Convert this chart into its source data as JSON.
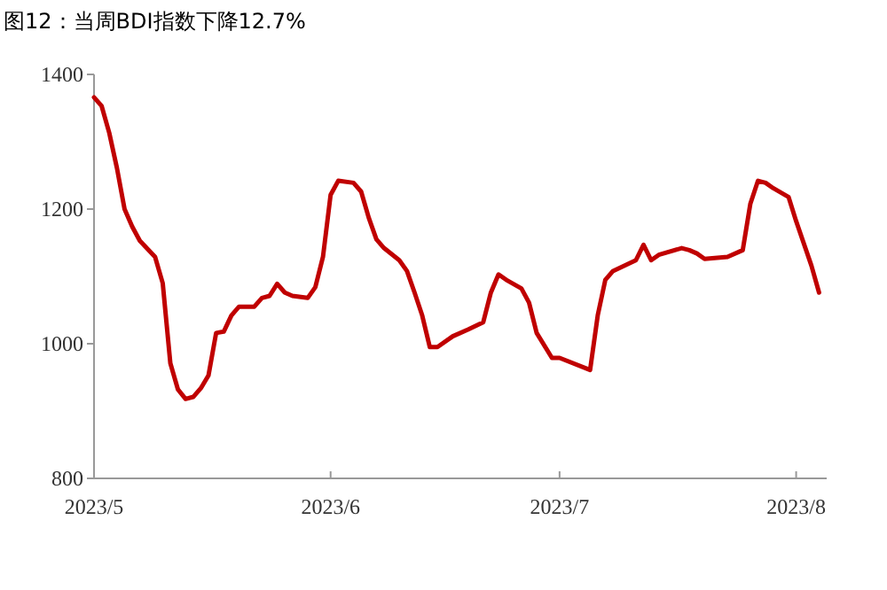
{
  "chart_data": {
    "type": "line",
    "title": "图12：当周BDI指数下降12.7%",
    "x": [
      "2023-05-01",
      "2023-05-02",
      "2023-05-03",
      "2023-05-04",
      "2023-05-05",
      "2023-05-06",
      "2023-05-07",
      "2023-05-09",
      "2023-05-10",
      "2023-05-11",
      "2023-05-12",
      "2023-05-13",
      "2023-05-14",
      "2023-05-15",
      "2023-05-16",
      "2023-05-17",
      "2023-05-18",
      "2023-05-19",
      "2023-05-20",
      "2023-05-22",
      "2023-05-23",
      "2023-05-24",
      "2023-05-25",
      "2023-05-26",
      "2023-05-27",
      "2023-05-29",
      "2023-05-30",
      "2023-05-31",
      "2023-06-01",
      "2023-06-02",
      "2023-06-04",
      "2023-06-05",
      "2023-06-06",
      "2023-06-07",
      "2023-06-08",
      "2023-06-10",
      "2023-06-11",
      "2023-06-12",
      "2023-06-13",
      "2023-06-14",
      "2023-06-15",
      "2023-06-17",
      "2023-06-19",
      "2023-06-21",
      "2023-06-22",
      "2023-06-23",
      "2023-06-24",
      "2023-06-26",
      "2023-06-27",
      "2023-06-28",
      "2023-06-30",
      "2023-07-01",
      "2023-07-05",
      "2023-07-06",
      "2023-07-07",
      "2023-07-08",
      "2023-07-11",
      "2023-07-12",
      "2023-07-13",
      "2023-07-14",
      "2023-07-17",
      "2023-07-18",
      "2023-07-19",
      "2023-07-20",
      "2023-07-23",
      "2023-07-25",
      "2023-07-26",
      "2023-07-27",
      "2023-07-28",
      "2023-07-29",
      "2023-07-31",
      "2023-08-01",
      "2023-08-03",
      "2023-08-04"
    ],
    "series": [
      {
        "color": "#c00000",
        "values": [
          1366,
          1353,
          1313,
          1261,
          1200,
          1174,
          1153,
          1129,
          1090,
          971,
          932,
          918,
          921,
          934,
          953,
          1016,
          1018,
          1042,
          1055,
          1055,
          1068,
          1071,
          1089,
          1076,
          1071,
          1068,
          1084,
          1129,
          1221,
          1242,
          1239,
          1226,
          1187,
          1155,
          1142,
          1124,
          1108,
          1076,
          1042,
          995,
          995,
          1011,
          1021,
          1032,
          1076,
          1103,
          1095,
          1082,
          1061,
          1016,
          979,
          979,
          961,
          1042,
          1095,
          1108,
          1124,
          1147,
          1124,
          1132,
          1142,
          1139,
          1134,
          1126,
          1129,
          1139,
          1208,
          1242,
          1239,
          1231,
          1218,
          1182,
          1116,
          1076
        ]
      }
    ],
    "xlim": [
      "2023-05-01",
      "2023-08-05"
    ],
    "xticks": [
      {
        "value": "2023-05-01",
        "label": "2023/5"
      },
      {
        "value": "2023-06-01",
        "label": "2023/6"
      },
      {
        "value": "2023-07-01",
        "label": "2023/7"
      },
      {
        "value": "2023-08-01",
        "label": "2023/8"
      }
    ],
    "ylim": [
      800,
      1400
    ],
    "yticks": [
      800,
      1000,
      1200,
      1400
    ],
    "grid": false,
    "marker": "none",
    "line_style": "solid"
  }
}
